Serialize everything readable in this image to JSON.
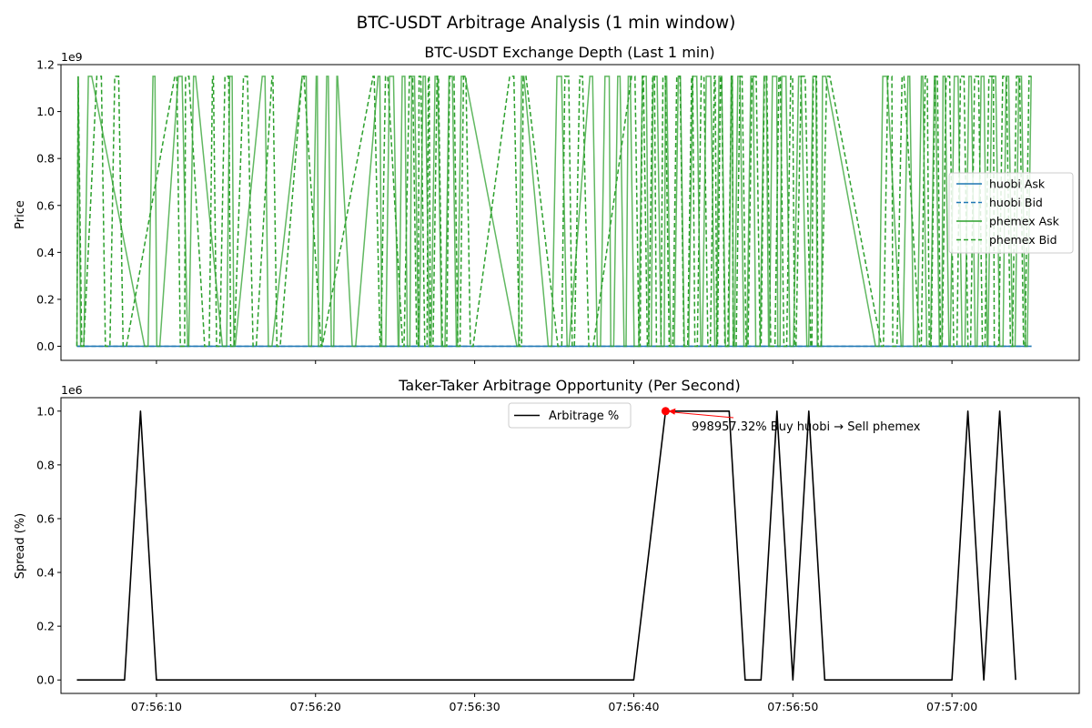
{
  "suptitle": "BTC-USDT Arbitrage Analysis (1 min window)",
  "chart_data": [
    {
      "type": "line",
      "title": "BTC-USDT Exchange Depth (Last 1 min)",
      "xlabel": "",
      "ylabel": "Price",
      "offset_text": "1e9",
      "xlim": [
        "07:56:04",
        "07:57:08"
      ],
      "ylim": [
        -0.06,
        1.2
      ],
      "y_scale_factor": 1000000000,
      "yticks": [
        0.0,
        0.2,
        0.4,
        0.6,
        0.8,
        1.0,
        1.2
      ],
      "ytick_labels": [
        "0.0",
        "0.2",
        "0.4",
        "0.6",
        "0.8",
        "1.0",
        "1.2"
      ],
      "xticks": [
        "07:56:10",
        "07:56:20",
        "07:56:30",
        "07:56:40",
        "07:56:50",
        "07:57:00"
      ],
      "xtick_labels_visible": false,
      "grid": false,
      "legend_position": "center-right",
      "series": [
        {
          "name": "huobi Ask",
          "color": "#1f77b4",
          "dash": "solid",
          "x_range": [
            "07:56:05",
            "07:57:05"
          ],
          "values": [
            0.0003,
            0.0003
          ]
        },
        {
          "name": "huobi Bid",
          "color": "#1f77b4",
          "dash": "dashed",
          "x_range": [
            "07:56:05",
            "07:57:05"
          ],
          "values": [
            0.0003,
            0.0003
          ]
        },
        {
          "name": "phemex Ask",
          "color": "#2ca02c",
          "dash": "solid",
          "x_range": [
            "07:56:05",
            "07:57:05"
          ],
          "low": 0.0,
          "high": 1.15,
          "pattern": "high-frequency switching between 0.0 and 1.15"
        },
        {
          "name": "phemex Bid",
          "color": "#2ca02c",
          "dash": "dashed",
          "x_range": [
            "07:56:05",
            "07:57:05"
          ],
          "low": 0.0,
          "high": 1.15,
          "pattern": "high-frequency switching between 0.0 and 1.15"
        }
      ]
    },
    {
      "type": "line",
      "title": "Taker-Taker Arbitrage Opportunity (Per Second)",
      "xlabel": "",
      "ylabel": "Spread (%)",
      "offset_text": "1e6",
      "xlim": [
        "07:56:04",
        "07:57:08"
      ],
      "ylim": [
        -0.05,
        1.05
      ],
      "y_scale_factor": 1000000,
      "yticks": [
        0.0,
        0.2,
        0.4,
        0.6,
        0.8,
        1.0
      ],
      "ytick_labels": [
        "0.0",
        "0.2",
        "0.4",
        "0.6",
        "0.8",
        "1.0"
      ],
      "xticks": [
        "07:56:10",
        "07:56:20",
        "07:56:30",
        "07:56:40",
        "07:56:50",
        "07:57:00"
      ],
      "xtick_labels": [
        "07:56:10",
        "07:56:20",
        "07:56:30",
        "07:56:40",
        "07:56:50",
        "07:57:00"
      ],
      "grid": false,
      "legend_position": "upper-center",
      "series": [
        {
          "name": "Arbitrage %",
          "color": "#000000",
          "dash": "solid",
          "x": [
            "07:56:05",
            "07:56:08",
            "07:56:09",
            "07:56:10",
            "07:56:40",
            "07:56:42",
            "07:56:46",
            "07:56:47",
            "07:56:48",
            "07:56:49",
            "07:56:50",
            "07:56:51",
            "07:56:52",
            "07:57:00",
            "07:57:01",
            "07:57:02",
            "07:57:03",
            "07:57:04"
          ],
          "values": [
            0,
            0,
            1.0,
            0,
            0,
            1.0,
            1.0,
            0,
            0,
            1.0,
            0,
            1.0,
            0,
            0,
            1.0,
            0,
            1.0,
            0
          ]
        }
      ],
      "annotation": {
        "text": "998957.32% Buy huobi → Sell phemex",
        "x": "07:56:42",
        "y": 1.0,
        "marker_color": "#ff0000",
        "arrow_color": "#ff0000"
      }
    }
  ]
}
